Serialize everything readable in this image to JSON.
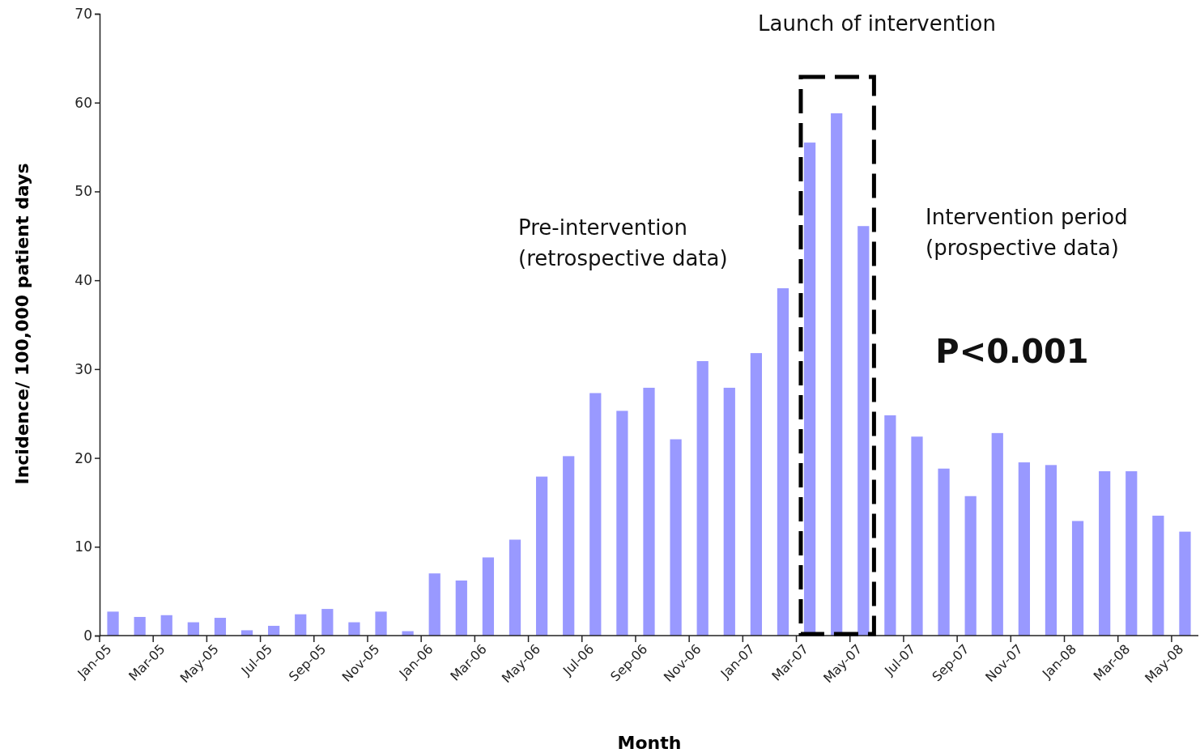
{
  "chart_data": {
    "type": "bar",
    "xlabel": "Month",
    "ylabel": "Incidence/ 100,000 patient days",
    "categories": [
      "Jan-05",
      null,
      "Mar-05",
      null,
      "May-05",
      null,
      "Jul-05",
      null,
      "Sep-05",
      null,
      "Nov-05",
      null,
      "Jan-06",
      null,
      "Mar-06",
      null,
      "May-06",
      null,
      "Jul-06",
      null,
      "Sep-06",
      null,
      "Nov-06",
      null,
      "Jan-07",
      null,
      "Mar-07",
      null,
      "May-07",
      null,
      "Jul-07",
      null,
      "Sep-07",
      null,
      "Nov-07",
      null,
      "Jan-08",
      null,
      "Mar-08",
      null,
      "May-08"
    ],
    "values": [
      2.7,
      2.1,
      2.3,
      1.5,
      2.0,
      0.6,
      1.1,
      2.4,
      3.0,
      1.5,
      2.7,
      0.5,
      7.0,
      6.2,
      8.8,
      10.8,
      17.9,
      20.2,
      27.3,
      25.3,
      27.9,
      22.1,
      30.9,
      27.9,
      31.8,
      39.1,
      55.5,
      58.8,
      46.1,
      24.8,
      22.4,
      18.8,
      15.7,
      22.8,
      19.5,
      19.2,
      12.9,
      18.5,
      18.5,
      13.5,
      11.7
    ],
    "color": "#9999ff",
    "ylim": [
      0,
      70
    ],
    "yticks": [
      0,
      10,
      20,
      30,
      40,
      50,
      60,
      70
    ],
    "grid": false,
    "annotations": [
      "Launch of intervention",
      "Pre-intervention\n(retrospective data)",
      "Intervention period\n(prospective data)",
      "P<0.001"
    ]
  }
}
